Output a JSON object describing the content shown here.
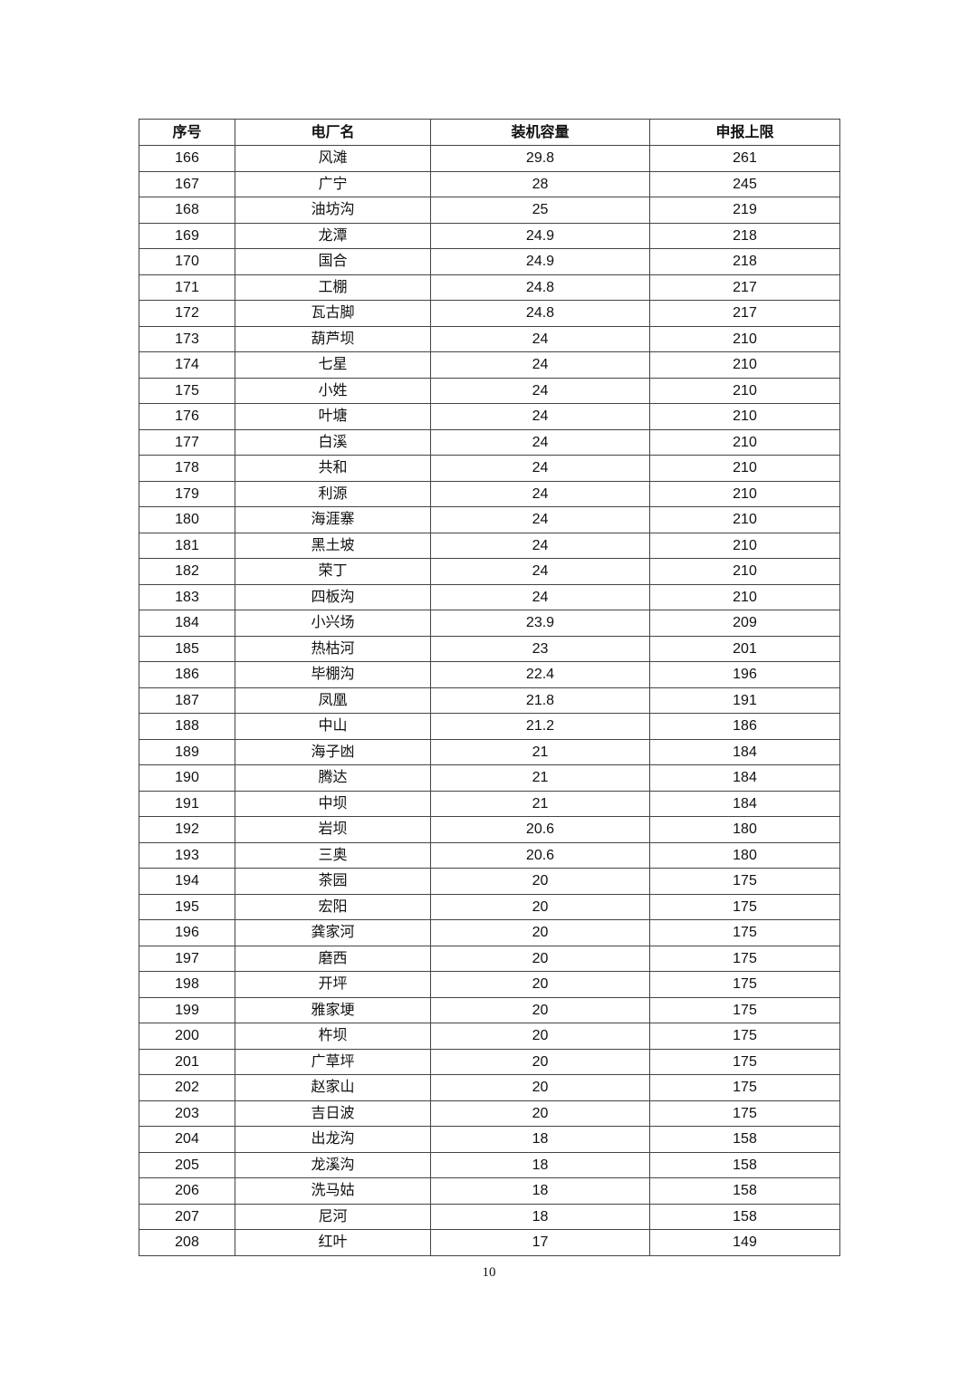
{
  "table": {
    "headers": [
      "序号",
      "电厂名",
      "装机容量",
      "申报上限"
    ],
    "rows": [
      [
        "166",
        "风滩",
        "29.8",
        "261"
      ],
      [
        "167",
        "广宁",
        "28",
        "245"
      ],
      [
        "168",
        "油坊沟",
        "25",
        "219"
      ],
      [
        "169",
        "龙潭",
        "24.9",
        "218"
      ],
      [
        "170",
        "国合",
        "24.9",
        "218"
      ],
      [
        "171",
        "工棚",
        "24.8",
        "217"
      ],
      [
        "172",
        "瓦古脚",
        "24.8",
        "217"
      ],
      [
        "173",
        "葫芦坝",
        "24",
        "210"
      ],
      [
        "174",
        "七星",
        "24",
        "210"
      ],
      [
        "175",
        "小姓",
        "24",
        "210"
      ],
      [
        "176",
        "叶塘",
        "24",
        "210"
      ],
      [
        "177",
        "白溪",
        "24",
        "210"
      ],
      [
        "178",
        "共和",
        "24",
        "210"
      ],
      [
        "179",
        "利源",
        "24",
        "210"
      ],
      [
        "180",
        "海涯寨",
        "24",
        "210"
      ],
      [
        "181",
        "黑土坡",
        "24",
        "210"
      ],
      [
        "182",
        "荣丁",
        "24",
        "210"
      ],
      [
        "183",
        "四板沟",
        "24",
        "210"
      ],
      [
        "184",
        "小兴场",
        "23.9",
        "209"
      ],
      [
        "185",
        "热枯河",
        "23",
        "201"
      ],
      [
        "186",
        "毕棚沟",
        "22.4",
        "196"
      ],
      [
        "187",
        "凤凰",
        "21.8",
        "191"
      ],
      [
        "188",
        "中山",
        "21.2",
        "186"
      ],
      [
        "189",
        "海子凼",
        "21",
        "184"
      ],
      [
        "190",
        "腾达",
        "21",
        "184"
      ],
      [
        "191",
        "中坝",
        "21",
        "184"
      ],
      [
        "192",
        "岩坝",
        "20.6",
        "180"
      ],
      [
        "193",
        "三奥",
        "20.6",
        "180"
      ],
      [
        "194",
        "茶园",
        "20",
        "175"
      ],
      [
        "195",
        "宏阳",
        "20",
        "175"
      ],
      [
        "196",
        "龚家河",
        "20",
        "175"
      ],
      [
        "197",
        "磨西",
        "20",
        "175"
      ],
      [
        "198",
        "开坪",
        "20",
        "175"
      ],
      [
        "199",
        "雅家埂",
        "20",
        "175"
      ],
      [
        "200",
        "杵坝",
        "20",
        "175"
      ],
      [
        "201",
        "广草坪",
        "20",
        "175"
      ],
      [
        "202",
        "赵家山",
        "20",
        "175"
      ],
      [
        "203",
        "吉日波",
        "20",
        "175"
      ],
      [
        "204",
        "出龙沟",
        "18",
        "158"
      ],
      [
        "205",
        "龙溪沟",
        "18",
        "158"
      ],
      [
        "206",
        "洗马姑",
        "18",
        "158"
      ],
      [
        "207",
        "尼河",
        "18",
        "158"
      ],
      [
        "208",
        "红叶",
        "17",
        "149"
      ]
    ]
  },
  "page_number": "10"
}
